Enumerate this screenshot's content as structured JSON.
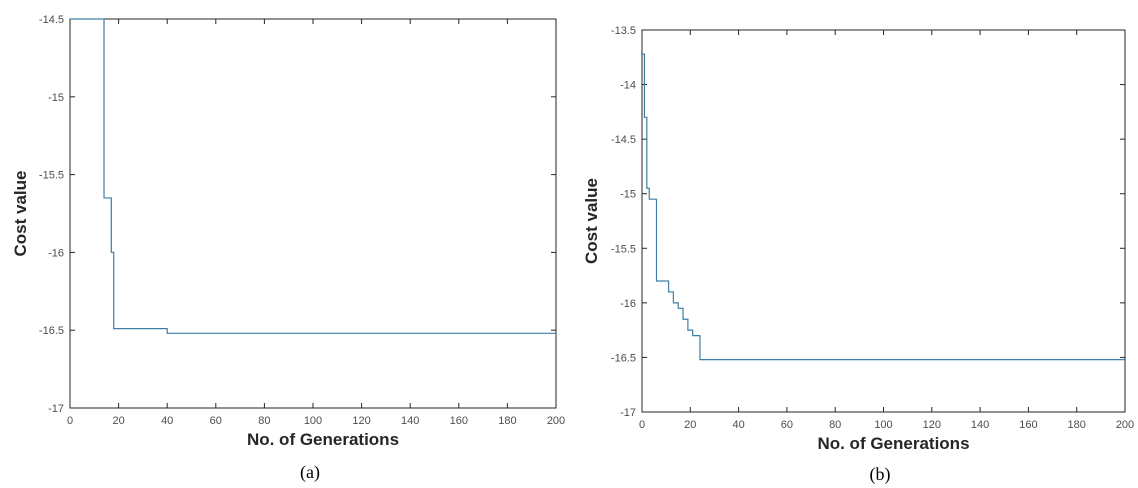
{
  "chart_data": [
    {
      "type": "line",
      "caption": "(a)",
      "xlabel": "No. of Generations",
      "ylabel": "Cost value",
      "xlim": [
        0,
        200
      ],
      "ylim": [
        -17,
        -14.5
      ],
      "xticks": [
        0,
        20,
        40,
        60,
        80,
        100,
        120,
        140,
        160,
        180,
        200
      ],
      "yticks": [
        -17,
        -16.5,
        -16,
        -15.5,
        -15,
        -14.5
      ],
      "grid": false,
      "line_color": "#3d7fa6",
      "series": [
        {
          "step": true,
          "x": [
            0,
            14,
            17,
            18,
            40,
            200
          ],
          "y": [
            -14.5,
            -15.65,
            -16.0,
            -16.49,
            -16.52,
            -16.52
          ]
        }
      ]
    },
    {
      "type": "line",
      "caption": "(b)",
      "xlabel": "No. of Generations",
      "ylabel": "Cost value",
      "xlim": [
        0,
        200
      ],
      "ylim": [
        -17,
        -13.5
      ],
      "xticks": [
        0,
        20,
        40,
        60,
        80,
        100,
        120,
        140,
        160,
        180,
        200
      ],
      "yticks": [
        -17,
        -16.5,
        -16,
        -15.5,
        -15,
        -14.5,
        -14,
        -13.5
      ],
      "grid": false,
      "line_color": "#3d7fa6",
      "series": [
        {
          "step": true,
          "x": [
            0,
            1,
            2,
            3,
            6,
            11,
            13,
            15,
            17,
            19,
            21,
            24,
            26,
            200
          ],
          "y": [
            -13.72,
            -14.3,
            -14.95,
            -15.05,
            -15.8,
            -15.9,
            -16.0,
            -16.05,
            -16.15,
            -16.25,
            -16.3,
            -16.52,
            -16.52,
            -16.52
          ]
        }
      ]
    }
  ]
}
